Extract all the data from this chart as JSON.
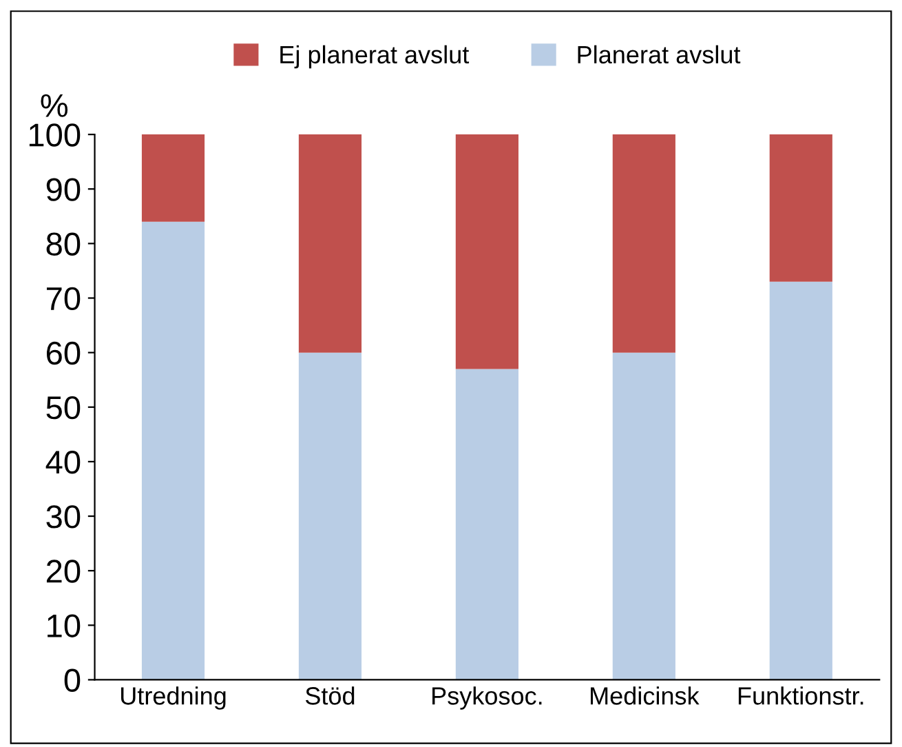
{
  "chart_data": {
    "type": "bar",
    "stacked": true,
    "ylabel": "%",
    "categories": [
      "Utredning",
      "Stöd",
      "Psykosoc.",
      "Medicinsk",
      "Funktionstr."
    ],
    "series": [
      {
        "name": "Planerat avslut",
        "color": "#b9cde5",
        "values": [
          84,
          60,
          57,
          60,
          73
        ]
      },
      {
        "name": "Ej planerat avslut",
        "color": "#c0504d",
        "values": [
          16,
          40,
          43,
          40,
          27
        ]
      }
    ],
    "ylim": [
      0,
      100
    ],
    "yticks": [
      0,
      10,
      20,
      30,
      40,
      50,
      60,
      70,
      80,
      90,
      100
    ],
    "grid": false,
    "legend": "top"
  }
}
